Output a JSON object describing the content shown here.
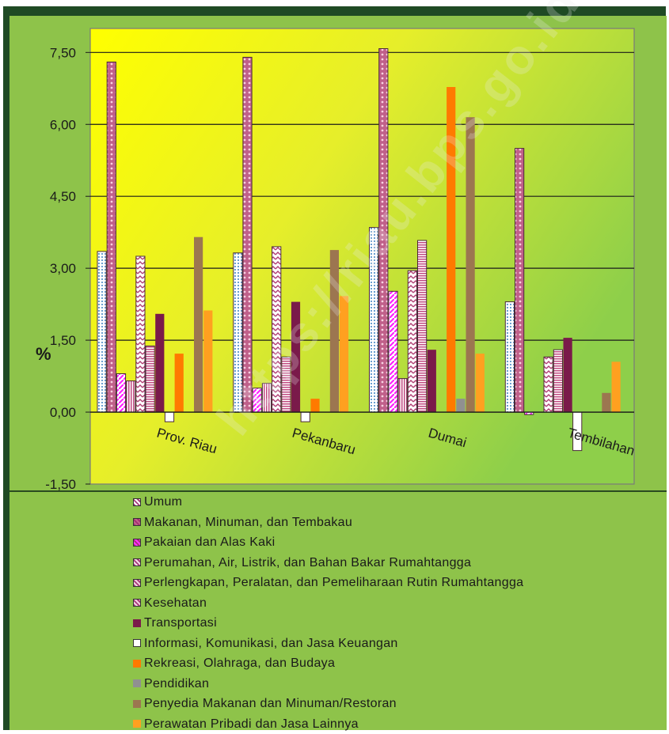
{
  "chart_data": {
    "type": "bar",
    "title": "",
    "xlabel": "",
    "ylabel": "%",
    "ylim": [
      -1.5,
      8.0
    ],
    "yticks": [
      "-1,50",
      "0,00",
      "1,50",
      "3,00",
      "4,50",
      "6,00",
      "7,50"
    ],
    "grid": true,
    "legend_position": "bottom",
    "categories": [
      "Prov. Riau",
      "Pekanbaru",
      "Dumai",
      "Tembilahan"
    ],
    "series": [
      {
        "name": "Umum",
        "color": "#ffffff",
        "pattern": "dots-blue",
        "values": [
          3.35,
          3.32,
          3.85,
          2.3
        ]
      },
      {
        "name": "Makanan, Minuman, dan Tembakau",
        "color": "#c0608a",
        "pattern": "pink-diamonds",
        "values": [
          7.3,
          7.4,
          7.58,
          5.5
        ]
      },
      {
        "name": "Pakaian dan Alas Kaki",
        "color": "#ff33ff",
        "pattern": "magenta-diagonal",
        "values": [
          0.8,
          0.5,
          2.52,
          -0.05
        ]
      },
      {
        "name": "Perumahan, Air, Listrik, dan Bahan Bakar Rumahtangga",
        "color": "#f2d8e6",
        "pattern": "vertical-stripes",
        "values": [
          0.65,
          0.6,
          0.7,
          0.0
        ]
      },
      {
        "name": "Perlengkapan, Peralatan, dan Pemeliharaan Rutin Rumahtangga",
        "color": "#f0d0e0",
        "pattern": "zigzag",
        "values": [
          3.25,
          3.45,
          2.95,
          1.15
        ]
      },
      {
        "name": "Kesehatan",
        "color": "#f2d0e2",
        "pattern": "horizontal-stripes",
        "values": [
          1.38,
          1.15,
          3.58,
          1.3
        ]
      },
      {
        "name": "Transportasi",
        "color": "#7a1a4a",
        "pattern": "solid",
        "values": [
          2.05,
          2.3,
          1.3,
          1.55
        ]
      },
      {
        "name": "Informasi, Komunikasi, dan Jasa Keuangan",
        "color": "#ffffff",
        "pattern": "solid",
        "values": [
          -0.2,
          -0.2,
          0.0,
          -0.8
        ]
      },
      {
        "name": "Rekreasi, Olahraga, dan Budaya",
        "color": "#ff7a00",
        "pattern": "solid",
        "values": [
          1.22,
          0.28,
          6.78,
          0.0
        ]
      },
      {
        "name": "Pendidikan",
        "color": "#909090",
        "pattern": "solid",
        "values": [
          0.0,
          0.0,
          0.28,
          0.0
        ]
      },
      {
        "name": "Penyedia Makanan dan Minuman/Restoran",
        "color": "#9c7650",
        "pattern": "solid",
        "values": [
          3.65,
          3.38,
          6.15,
          0.4
        ]
      },
      {
        "name": "Perawatan Pribadi dan Jasa Lainnya",
        "color": "#ffa020",
        "pattern": "solid",
        "values": [
          2.12,
          2.42,
          1.22,
          1.05
        ]
      }
    ]
  },
  "watermark": "https://riau.bps.go.id"
}
